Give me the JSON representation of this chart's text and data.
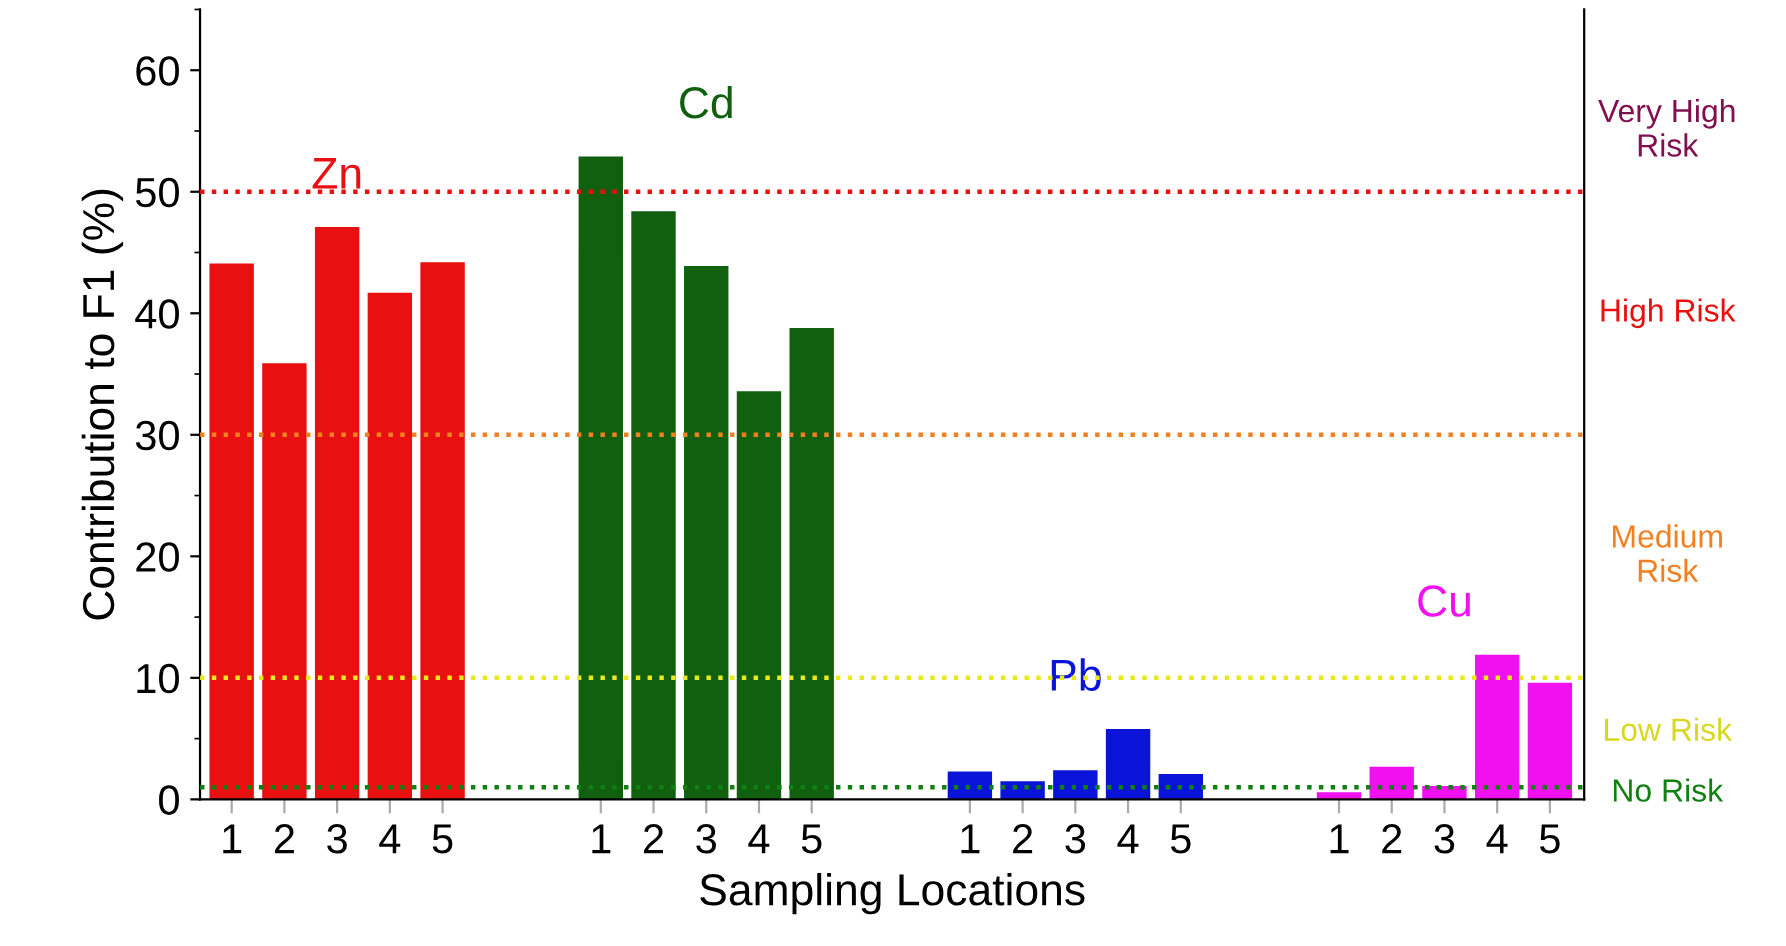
{
  "chart_data": {
    "type": "bar",
    "xlabel": "Sampling Locations",
    "ylabel": "Contribution to F1 (%)",
    "categories": [
      "1",
      "2",
      "3",
      "4",
      "5",
      null,
      null,
      "1",
      "2",
      "3",
      "4",
      "5",
      null,
      null,
      "1",
      "2",
      "3",
      "4",
      "5",
      null,
      null,
      "1",
      "2",
      "3",
      "4",
      "5"
    ],
    "series": [
      {
        "name": "Zn",
        "color": "#e81010",
        "values": [
          44.0,
          35.8,
          47.0,
          41.6,
          44.1,
          null,
          null,
          null,
          null,
          null,
          null,
          null,
          null,
          null,
          null,
          null,
          null,
          null,
          null,
          null,
          null,
          null,
          null,
          null,
          null,
          null
        ]
      },
      {
        "name": "Cd",
        "color": "#106010",
        "values": [
          null,
          null,
          null,
          null,
          null,
          null,
          null,
          52.8,
          48.3,
          43.8,
          33.5,
          38.7,
          null,
          null,
          null,
          null,
          null,
          null,
          null,
          null,
          null,
          null,
          null,
          null,
          null,
          null
        ]
      },
      {
        "name": "Pb",
        "color": "#0a14d8",
        "values": [
          null,
          null,
          null,
          null,
          null,
          null,
          null,
          null,
          null,
          null,
          null,
          null,
          null,
          null,
          2.2,
          1.4,
          2.3,
          5.7,
          2.0,
          null,
          null,
          null,
          null,
          null,
          null,
          null
        ]
      },
      {
        "name": "Cu",
        "color": "#f010f0",
        "values": [
          null,
          null,
          null,
          null,
          null,
          null,
          null,
          null,
          null,
          null,
          null,
          null,
          null,
          null,
          null,
          null,
          null,
          null,
          null,
          null,
          null,
          0.5,
          2.6,
          1.0,
          11.8,
          9.5
        ]
      }
    ],
    "ylim": [
      0,
      65
    ],
    "yticks": [
      0,
      10,
      20,
      30,
      40,
      50,
      60
    ],
    "ref_lines": [
      {
        "axis": "y",
        "value": 50,
        "color": "#e81010",
        "line_style": "dotted"
      },
      {
        "axis": "y",
        "value": 30,
        "color": "#f08020",
        "line_style": "dotted"
      },
      {
        "axis": "y",
        "value": 10,
        "color": "#e8e820",
        "line_style": "dotted"
      },
      {
        "axis": "y",
        "value": 1,
        "color": "#108010",
        "line_style": "dotted"
      }
    ],
    "annotations": [
      "Very High\nRisk",
      "High Risk",
      "Medium\nRisk",
      "Low Risk",
      "No Risk"
    ],
    "grid": false,
    "legend": false
  }
}
